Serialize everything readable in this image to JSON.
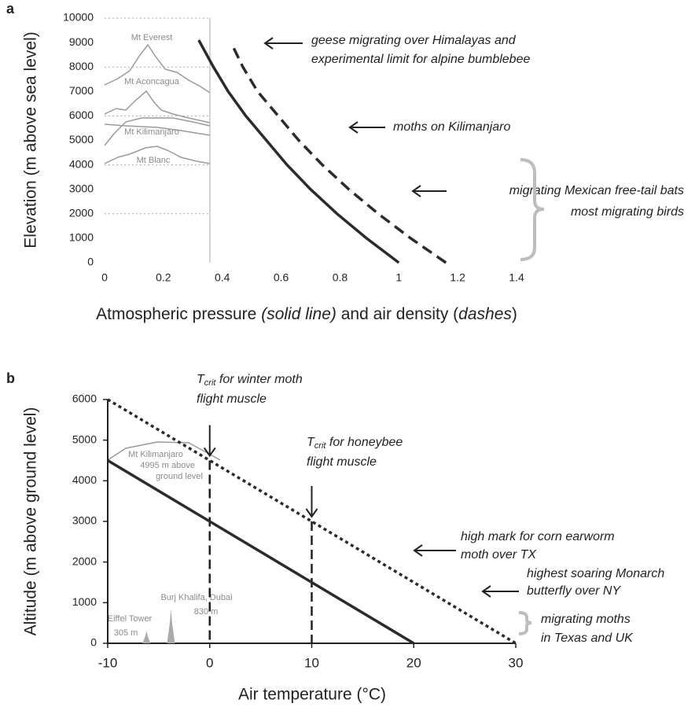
{
  "chart_data": [
    {
      "type": "line",
      "panel_label": "a",
      "ylabel": "Elevation (m above sea level)",
      "xlabel_parts": [
        "Atmospheric pressure ",
        "(solid line)",
        " and air density (",
        "dashes",
        ")"
      ],
      "xlim": [
        0,
        1.4
      ],
      "xticks": [
        0,
        0.2,
        0.4,
        0.6,
        0.8,
        1,
        1.2,
        1.4
      ],
      "ylim": [
        0,
        10000
      ],
      "yticks": [
        0,
        1000,
        2000,
        3000,
        4000,
        5000,
        6000,
        7000,
        8000,
        9000,
        10000
      ],
      "series": [
        {
          "style": "solid",
          "color": "#2b2b2b",
          "x": [
            1,
            0.89,
            0.79,
            0.7,
            0.62,
            0.55,
            0.48,
            0.42,
            0.37,
            0.32
          ],
          "values": [
            0,
            1000,
            2000,
            3000,
            4000,
            5000,
            6000,
            7000,
            8000,
            9100
          ]
        },
        {
          "style": "dashed",
          "color": "#2b2b2b",
          "x": [
            1.16,
            1.04,
            0.93,
            0.83,
            0.74,
            0.66,
            0.59,
            0.52,
            0.47,
            0.43
          ],
          "values": [
            0,
            1000,
            2000,
            3000,
            4000,
            5000,
            6000,
            7000,
            8000,
            9000
          ]
        }
      ],
      "mountain_labels": [
        "Mt Everest",
        "Mt Aconcagua",
        "Mt Kilimanjaro",
        "Mt Blanc"
      ],
      "annotations": [
        {
          "lines": [
            "geese migrating over Himalayas and",
            "experimental limit for alpine bumblebee"
          ]
        },
        {
          "lines": [
            "moths on Kilimanjaro"
          ]
        },
        {
          "lines": [
            "migrating Mexican free-tail bats",
            "most migrating birds"
          ]
        }
      ]
    },
    {
      "type": "line",
      "panel_label": "b",
      "ylabel": "Altitude (m above ground level)",
      "xlabel": "Air temperature (°C)",
      "xlim": [
        -10,
        30
      ],
      "xticks": [
        -10,
        0,
        10,
        20,
        30
      ],
      "ylim": [
        0,
        6000
      ],
      "yticks": [
        0,
        1000,
        2000,
        3000,
        4000,
        5000,
        6000
      ],
      "series": [
        {
          "style": "solid",
          "color": "#2b2b2b",
          "x": [
            -10,
            20
          ],
          "values": [
            4500,
            0
          ]
        },
        {
          "style": "dotted",
          "color": "#2b2b2b",
          "x": [
            -10,
            30
          ],
          "values": [
            6000,
            0
          ]
        }
      ],
      "structures": [
        {
          "label": "Eiffel Tower",
          "height_label": "305 m",
          "x": -6.2,
          "height": 305
        },
        {
          "label": "Burj Khalifa, Dubai",
          "height_label": "830 m",
          "x": -3.8,
          "height": 830
        }
      ],
      "mountain_label": [
        "Mt Kilimanjaro",
        "4995 m above",
        "ground level"
      ],
      "tcrit": [
        {
          "symbol": "T",
          "subscript": "crit",
          "lines": [
            " for winter moth",
            "flight muscle"
          ],
          "x": 0,
          "value": 4500
        },
        {
          "symbol": "T",
          "subscript": "crit",
          "lines": [
            " for honeybee",
            "flight muscle"
          ],
          "x": 10,
          "value": 3000
        }
      ],
      "annotations": [
        {
          "lines": [
            "high mark for corn earworm",
            "moth over TX"
          ]
        },
        {
          "lines": [
            "highest soaring Monarch",
            "butterfly over NY"
          ]
        },
        {
          "lines": [
            "migrating moths",
            "in Texas and UK"
          ]
        }
      ]
    }
  ]
}
